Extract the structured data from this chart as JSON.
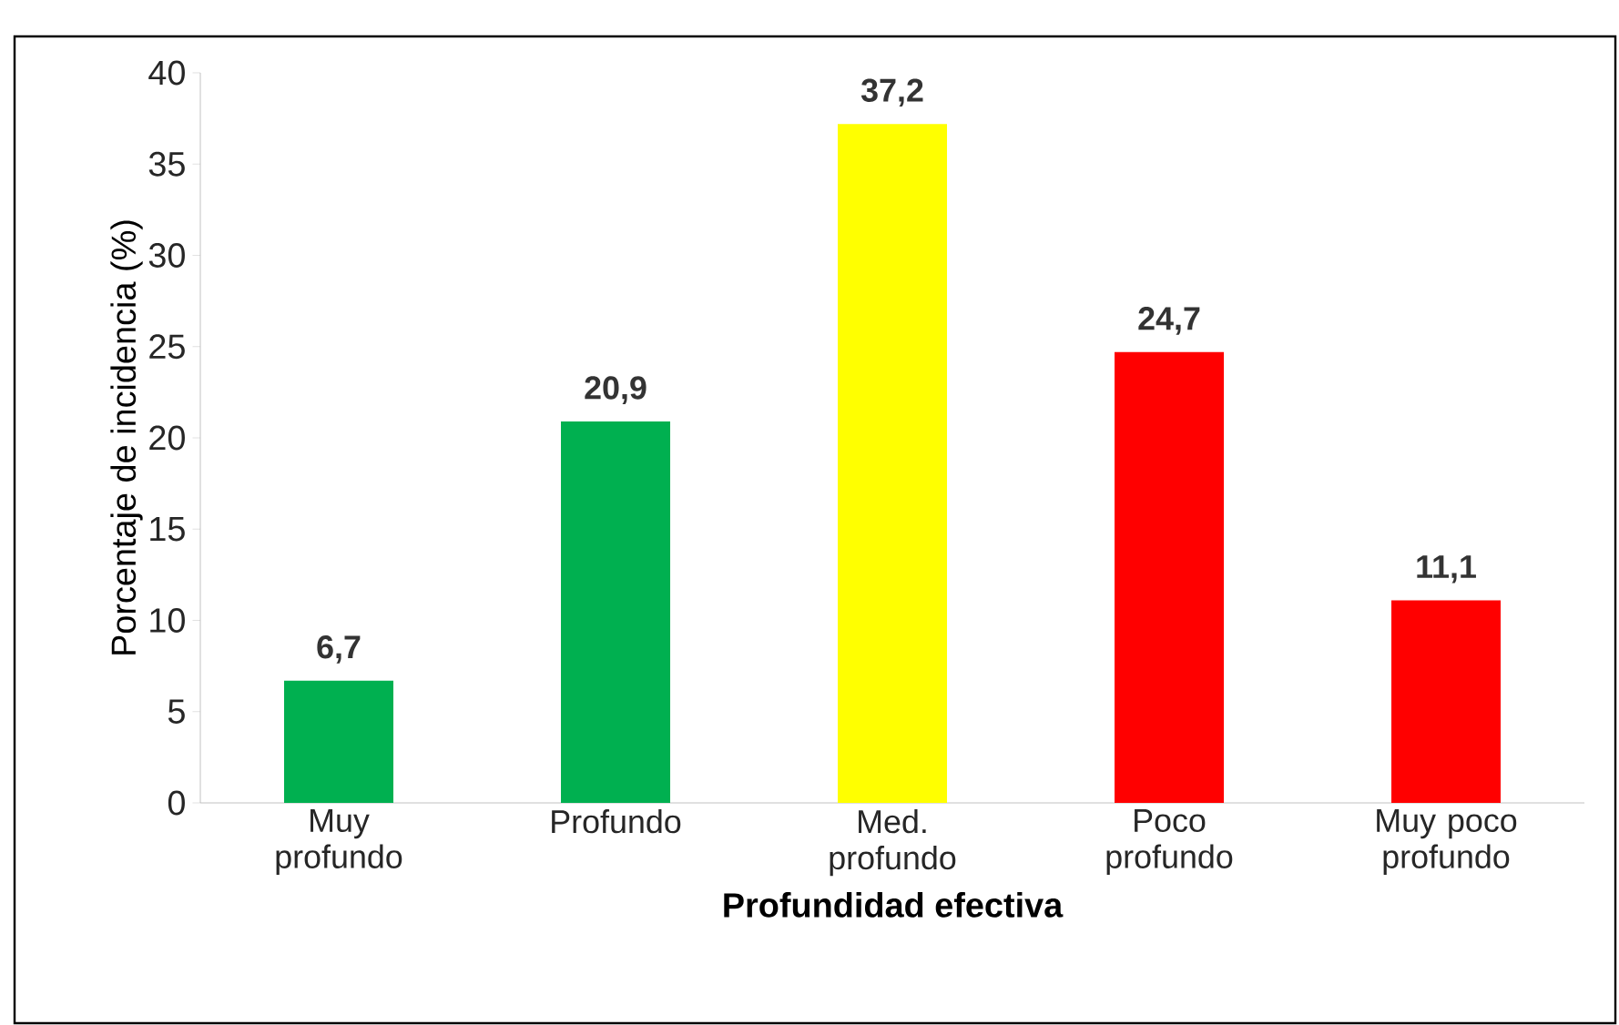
{
  "chart_data": {
    "type": "bar",
    "categories": [
      "Muy profundo",
      "Profundo",
      "Med. profundo",
      "Poco profundo",
      "Muy poco profundo"
    ],
    "values": [
      6.7,
      20.9,
      37.2,
      24.7,
      11.1
    ],
    "colors": [
      "#00b050",
      "#00b050",
      "#ffff00",
      "#ff0000",
      "#ff0000"
    ],
    "value_labels": [
      "6,7",
      "20,9",
      "37,2",
      "24,7",
      "11,1"
    ],
    "xlabel": "Profundidad efectiva",
    "ylabel": "Porcentaje de incidencia (%)",
    "ylim": [
      0,
      40
    ],
    "yticks": [
      0,
      5,
      10,
      15,
      20,
      25,
      30,
      35,
      40
    ],
    "grid": false
  }
}
